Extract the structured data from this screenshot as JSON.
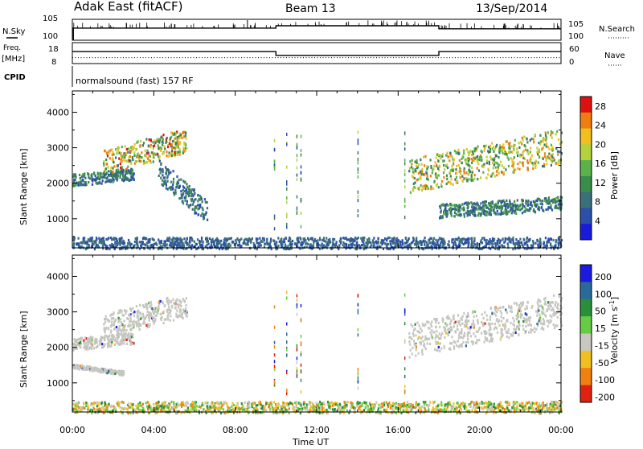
{
  "header": {
    "station": "Adak East (fitACF)",
    "beam": "Beam 13",
    "date": "13/Sep/2014"
  },
  "labels": {
    "nsky": "N.Sky",
    "nsearch": "N.Search",
    "freq": "Freq.",
    "freq_unit": "[MHz]",
    "nave": "Nave",
    "cpid": "CPID",
    "mode": "normalsound (fast) 157 RF",
    "ylabel": "Slant Range [km]",
    "xlabel": "Time UT",
    "power_label": "Power [dB]",
    "velocity_label": "Velocity [m s",
    "velocity_exp": "-1",
    "velocity_close": "]"
  },
  "chart_data": [
    {
      "type": "line",
      "name": "noise-panel",
      "left_ticks": [
        "10^5",
        "10^0"
      ],
      "right_ticks": [
        "10^5",
        "10^0"
      ],
      "series": [
        {
          "name": "N.Sky",
          "x": [
            0,
            10,
            10,
            18,
            18,
            24
          ],
          "y": [
            3.2,
            3.2,
            3.8,
            3.8,
            3.0,
            3.0
          ]
        }
      ]
    },
    {
      "type": "line",
      "name": "freq-panel",
      "left_ticks": [
        "18",
        "8"
      ],
      "right_ticks": [
        "60",
        "0"
      ],
      "series": [
        {
          "name": "Freq",
          "x": [
            0,
            10,
            10,
            18,
            18,
            24
          ],
          "y": [
            14,
            14,
            11.5,
            11.5,
            14,
            14
          ]
        },
        {
          "name": "Nave",
          "x": [
            0,
            24
          ],
          "y": [
            10,
            10
          ]
        }
      ]
    },
    {
      "type": "heatmap",
      "name": "power",
      "xlabel": "Time UT",
      "ylabel": "Slant Range [km]",
      "xlim": [
        0,
        24
      ],
      "ylim": [
        180,
        4600
      ],
      "xticks": [
        "00:00",
        "04:00",
        "08:00",
        "12:00",
        "16:00",
        "20:00",
        "00:00"
      ],
      "yticks": [
        1000,
        2000,
        3000,
        4000
      ],
      "colorbar": {
        "label": "Power [dB]",
        "ticks": [
          "4",
          "8",
          "12",
          "16",
          "20",
          "24",
          "28"
        ],
        "range": [
          0,
          30
        ]
      },
      "echo_regions": [
        {
          "t": [
            0,
            3
          ],
          "range_km": [
            1900,
            2500
          ],
          "power_db": [
            4,
            14
          ]
        },
        {
          "t": [
            1.5,
            5.6
          ],
          "range_km": [
            2300,
            3550
          ],
          "power_db": [
            8,
            28
          ]
        },
        {
          "t": [
            4.2,
            6.6
          ],
          "range_km": [
            1200,
            2400
          ],
          "power_db": [
            4,
            12
          ]
        },
        {
          "t": [
            16.5,
            24
          ],
          "range_km": [
            1800,
            3500
          ],
          "power_db": [
            8,
            26
          ]
        },
        {
          "t": [
            18,
            24
          ],
          "range_km": [
            1000,
            1700
          ],
          "power_db": [
            4,
            14
          ]
        },
        {
          "t": [
            0,
            24
          ],
          "range_km": [
            180,
            500
          ],
          "power_db": [
            4,
            10
          ]
        }
      ]
    },
    {
      "type": "heatmap",
      "name": "velocity",
      "xlabel": "Time UT",
      "ylabel": "Slant Range [km]",
      "xlim": [
        0,
        24
      ],
      "ylim": [
        180,
        4600
      ],
      "xticks": [
        "00:00",
        "04:00",
        "08:00",
        "12:00",
        "16:00",
        "20:00",
        "00:00"
      ],
      "yticks": [
        1000,
        2000,
        3000,
        4000
      ],
      "colorbar": {
        "label": "Velocity [m s-1]",
        "ticks": [
          "200",
          "100",
          "50",
          "15",
          "-15",
          "-50",
          "-100",
          "-200"
        ]
      },
      "echo_regions": [
        {
          "t": [
            0,
            3
          ],
          "range_km": [
            1900,
            2500
          ],
          "velocity": "ground scatter"
        },
        {
          "t": [
            1.5,
            5.6
          ],
          "range_km": [
            2300,
            3550
          ],
          "velocity": "ground scatter"
        },
        {
          "t": [
            0,
            2.5
          ],
          "range_km": [
            1300,
            1500
          ],
          "velocity": "ground scatter"
        },
        {
          "t": [
            16.5,
            24
          ],
          "range_km": [
            1800,
            3500
          ],
          "velocity": "ground scatter"
        },
        {
          "t": [
            0,
            24
          ],
          "range_km": [
            180,
            500
          ],
          "velocity": [
            -50,
            100
          ]
        }
      ]
    }
  ],
  "colors": {
    "power_scale": [
      "#1a1adb",
      "#2c4faa",
      "#3b6f7a",
      "#3a8c4a",
      "#5ab34a",
      "#b4d23c",
      "#f0c020",
      "#f07d10",
      "#e01010"
    ],
    "velocity_scale": [
      "#1a1ae0",
      "#2a6a9a",
      "#2a8f3a",
      "#66cc44",
      "#c8c8c0",
      "#f0c020",
      "#f08010",
      "#e02010"
    ],
    "ground_scatter": "#c6c6c0"
  }
}
